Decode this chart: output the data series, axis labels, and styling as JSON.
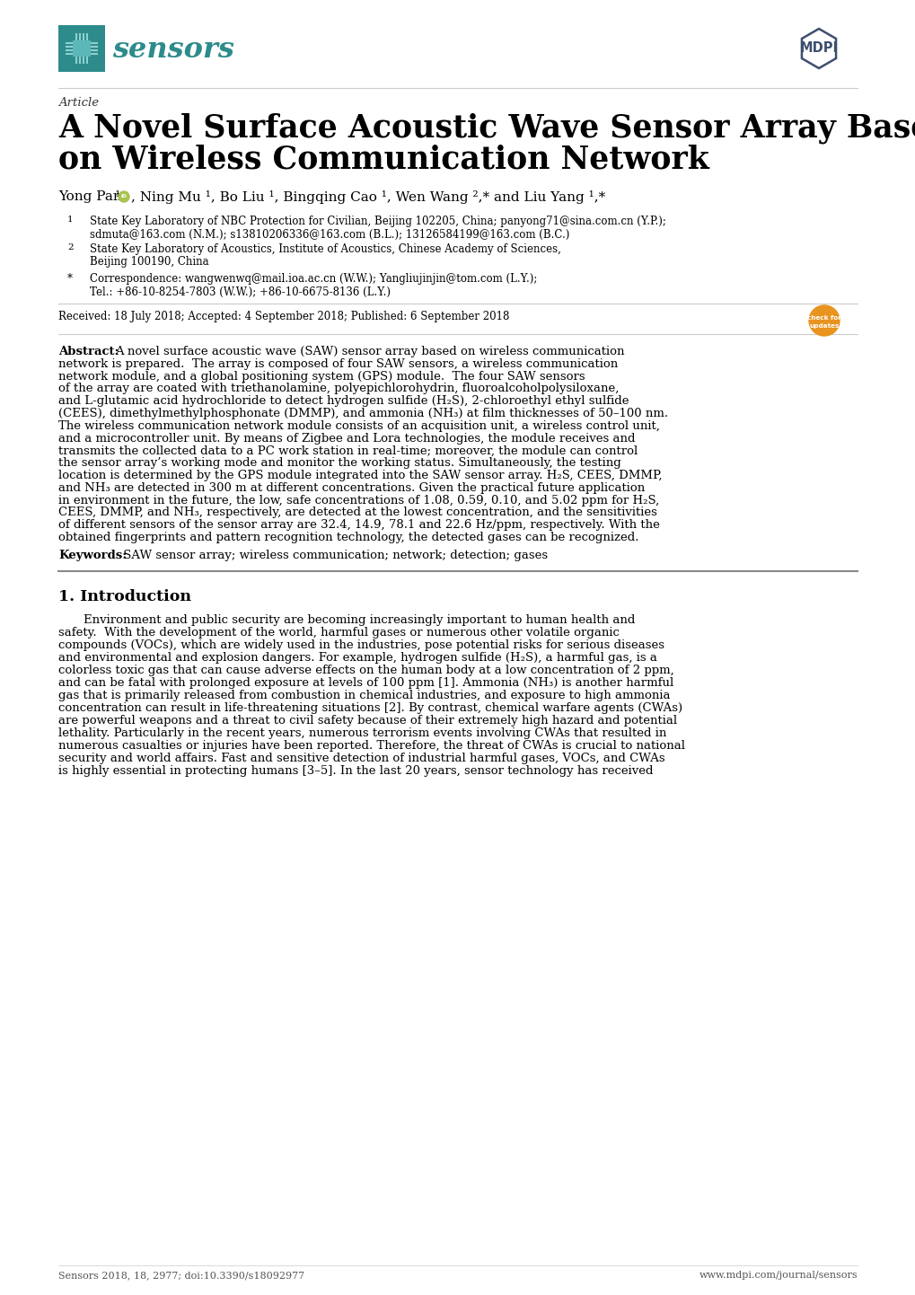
{
  "bg_color": "#ffffff",
  "teal_color": "#2d8b8b",
  "mdpi_color": "#3d4f6e",
  "text_color": "#000000",
  "gray_text": "#555555",
  "article_label": "Article",
  "title_line1": "A Novel Surface Acoustic Wave Sensor Array Based",
  "title_line2": "on Wireless Communication Network",
  "affil1_sup": "1",
  "affil1_text": "State Key Laboratory of NBC Protection for Civilian, Beijing 102205, China; panyong71@sina.com.cn (Y.P.);",
  "affil1b_text": "sdmuta@163.com (N.M.); s13810206336@163.com (B.L.); 13126584199@163.com (B.C.)",
  "affil2_sup": "2",
  "affil2_text": "State Key Laboratory of Acoustics, Institute of Acoustics, Chinese Academy of Sciences,",
  "affil2b_text": "Beijing 100190, China",
  "corresp_sup": "*",
  "corresp_text": "Correspondence: wangwenwq@mail.ioa.ac.cn (W.W.); Yangliujinjin@tom.com (L.Y.);",
  "correspb_text": "Tel.: +86-10-8254-7803 (W.W.); +86-10-6675-8136 (L.Y.)",
  "received": "Received: 18 July 2018; Accepted: 4 September 2018; Published: 6 September 2018",
  "abstract_lines": [
    "A novel surface acoustic wave (SAW) sensor array based on wireless communication",
    "network is prepared.  The array is composed of four SAW sensors, a wireless communication",
    "network module, and a global positioning system (GPS) module.  The four SAW sensors",
    "of the array are coated with triethanolamine, polyepichlorohydrin, fluoroalcoholpolysiloxane,",
    "and L-glutamic acid hydrochloride to detect hydrogen sulfide (H₂S), 2-chloroethyl ethyl sulfide",
    "(CEES), dimethylmethylphosphonate (DMMP), and ammonia (NH₃) at film thicknesses of 50–100 nm.",
    "The wireless communication network module consists of an acquisition unit, a wireless control unit,",
    "and a microcontroller unit. By means of Zigbee and Lora technologies, the module receives and",
    "transmits the collected data to a PC work station in real-time; moreover, the module can control",
    "the sensor array’s working mode and monitor the working status. Simultaneously, the testing",
    "location is determined by the GPS module integrated into the SAW sensor array. H₂S, CEES, DMMP,",
    "and NH₃ are detected in 300 m at different concentrations. Given the practical future application",
    "in environment in the future, the low, safe concentrations of 1.08, 0.59, 0.10, and 5.02 ppm for H₂S,",
    "CEES, DMMP, and NH₃, respectively, are detected at the lowest concentration, and the sensitivities",
    "of different sensors of the sensor array are 32.4, 14.9, 78.1 and 22.6 Hz/ppm, respectively. With the",
    "obtained fingerprints and pattern recognition technology, the detected gases can be recognized."
  ],
  "keywords_label": "Keywords:",
  "keywords_text": " SAW sensor array; wireless communication; network; detection; gases",
  "section1_title": "1. Introduction",
  "intro_lines": [
    "Environment and public security are becoming increasingly important to human health and",
    "safety.  With the development of the world, harmful gases or numerous other volatile organic",
    "compounds (VOCs), which are widely used in the industries, pose potential risks for serious diseases",
    "and environmental and explosion dangers. For example, hydrogen sulfide (H₂S), a harmful gas, is a",
    "colorless toxic gas that can cause adverse effects on the human body at a low concentration of 2 ppm,",
    "and can be fatal with prolonged exposure at levels of 100 ppm [1]. Ammonia (NH₃) is another harmful",
    "gas that is primarily released from combustion in chemical industries, and exposure to high ammonia",
    "concentration can result in life-threatening situations [2]. By contrast, chemical warfare agents (CWAs)",
    "are powerful weapons and a threat to civil safety because of their extremely high hazard and potential",
    "lethality. Particularly in the recent years, numerous terrorism events involving CWAs that resulted in",
    "numerous casualties or injuries have been reported. Therefore, the threat of CWAs is crucial to national",
    "security and world affairs. Fast and sensitive detection of industrial harmful gases, VOCs, and CWAs",
    "is highly essential in protecting humans [3–5]. In the last 20 years, sensor technology has received"
  ],
  "footer_left": "Sensors 2018, 18, 2977; doi:10.3390/s18092977",
  "footer_right": "www.mdpi.com/journal/sensors"
}
